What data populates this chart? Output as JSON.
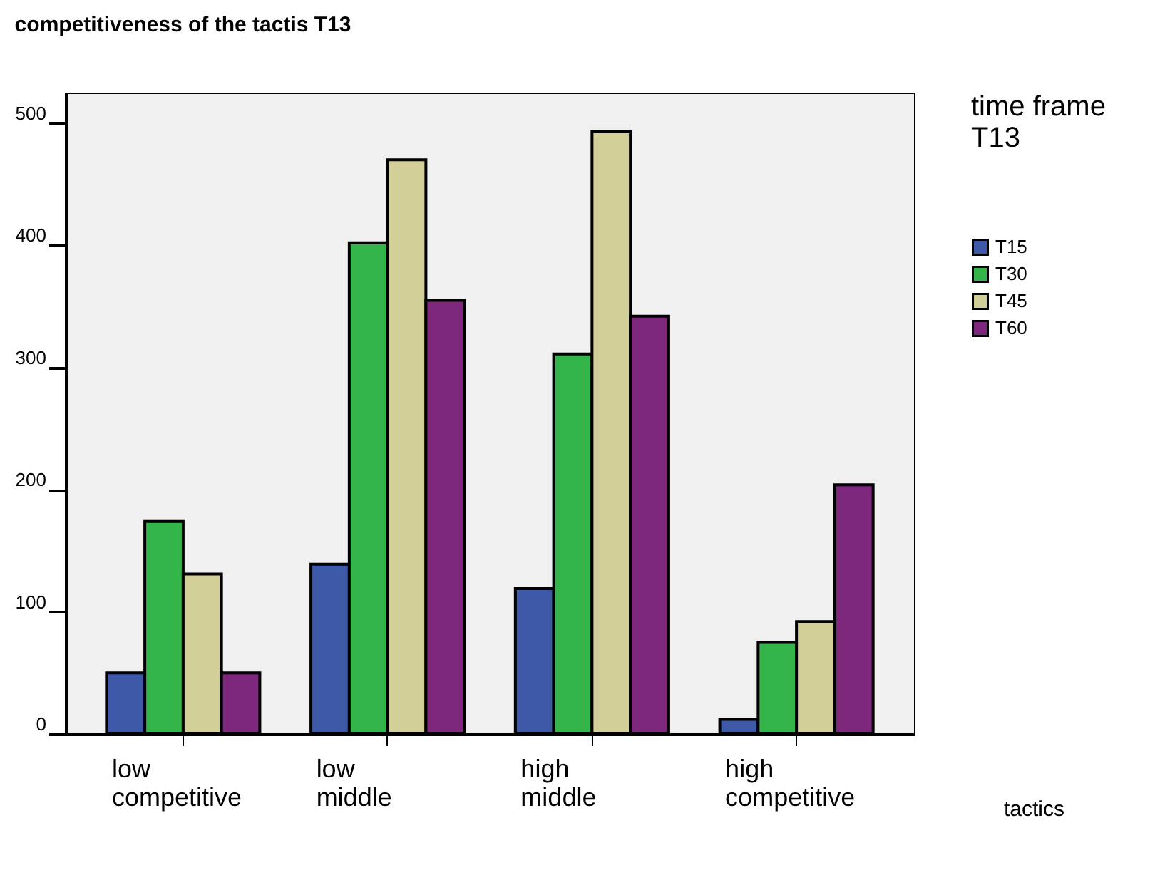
{
  "chart_data": {
    "type": "bar",
    "title": "competitiveness of the tactis T13",
    "xlabel": "tactics",
    "legend_title": "time frame T13",
    "categories": [
      "low competitive",
      "low middle",
      "high middle",
      "high competitive"
    ],
    "series": [
      {
        "name": "T15",
        "color": "#3f59a9",
        "values": [
          50,
          139,
          119,
          12
        ]
      },
      {
        "name": "T30",
        "color": "#33b54a",
        "values": [
          174,
          402,
          311,
          75
        ]
      },
      {
        "name": "T45",
        "color": "#d3cf98",
        "values": [
          131,
          470,
          493,
          92
        ]
      },
      {
        "name": "T60",
        "color": "#7d287c",
        "values": [
          50,
          355,
          342,
          204
        ]
      }
    ],
    "ylim": [
      0,
      525
    ],
    "yticks": [
      0,
      100,
      200,
      300,
      400,
      500
    ],
    "grid": false,
    "legend": "right"
  }
}
